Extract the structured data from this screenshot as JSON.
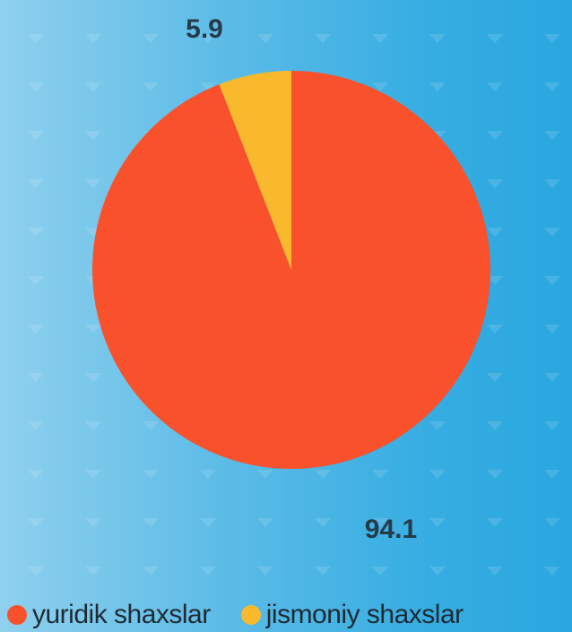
{
  "chart_data": {
    "type": "pie",
    "title": "",
    "series": [
      {
        "values": [
          94.1,
          5.9
        ],
        "labels": [
          "yuridik shaxslar",
          "jismoniy shaxslar"
        ],
        "data_labels": [
          "94.1",
          "5.9"
        ],
        "colors": [
          "#f9512c",
          "#f8b92d"
        ]
      }
    ],
    "categories": [
      "yuridik shaxslar",
      "jismoniy shaxslar"
    ],
    "values": [
      94.1,
      5.9
    ],
    "legend": {
      "placement": "bottom",
      "entries": [
        {
          "label": "yuridik shaxslar",
          "color": "#f9512c"
        },
        {
          "label": "jismoniy shaxslar",
          "color": "#f8b92d"
        }
      ]
    }
  }
}
